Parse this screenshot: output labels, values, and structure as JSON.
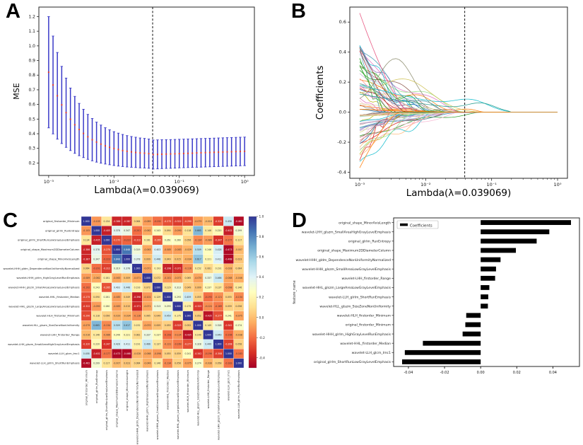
{
  "figure": {
    "panels": {
      "a_label": "A",
      "b_label": "B",
      "c_label": "C",
      "d_label": "D"
    }
  },
  "chart_data": [
    {
      "panel": "A",
      "type": "errorbar",
      "xlabel": "Lambda(λ=0.039069)",
      "ylabel": "MSE",
      "x_tick_labels": [
        "10⁻³",
        "10⁻²",
        "10⁻¹",
        "10⁰"
      ],
      "x_tick_values": [
        -3,
        -2,
        -1,
        0
      ],
      "y_ticks": [
        0.2,
        0.3,
        0.4,
        0.5,
        0.6,
        0.7,
        0.8,
        0.9,
        1.0,
        1.1,
        1.2
      ],
      "xlim": [
        -3.15,
        0.15
      ],
      "ylim": [
        0.115,
        1.265
      ],
      "vline_loglambda": -1.408,
      "colors": {
        "bar": "#3a3ac8",
        "point": "#e03c31",
        "vline": "#222222"
      },
      "loglambda": [
        -3.0,
        -2.933,
        -2.867,
        -2.8,
        -2.733,
        -2.667,
        -2.6,
        -2.533,
        -2.467,
        -2.4,
        -2.333,
        -2.267,
        -2.2,
        -2.133,
        -2.067,
        -2.0,
        -1.933,
        -1.867,
        -1.8,
        -1.733,
        -1.667,
        -1.6,
        -1.533,
        -1.467,
        -1.4,
        -1.333,
        -1.267,
        -1.2,
        -1.133,
        -1.067,
        -1.0,
        -0.933,
        -0.867,
        -0.8,
        -0.733,
        -0.667,
        -0.6,
        -0.533,
        -0.467,
        -0.4,
        -0.333,
        -0.267,
        -0.2,
        -0.133,
        -0.067,
        0.0
      ],
      "mse_mean": [
        0.82,
        0.733,
        0.659,
        0.597,
        0.544,
        0.499,
        0.461,
        0.429,
        0.402,
        0.379,
        0.359,
        0.343,
        0.329,
        0.317,
        0.307,
        0.299,
        0.292,
        0.285,
        0.28,
        0.276,
        0.272,
        0.269,
        0.267,
        0.264,
        0.258,
        0.259,
        0.26,
        0.261,
        0.262,
        0.263,
        0.264,
        0.265,
        0.266,
        0.267,
        0.269,
        0.27,
        0.271,
        0.272,
        0.273,
        0.274,
        0.275,
        0.276,
        0.277,
        0.278,
        0.279,
        0.28
      ],
      "mse_lower": [
        0.44,
        0.399,
        0.363,
        0.333,
        0.307,
        0.285,
        0.266,
        0.25,
        0.237,
        0.225,
        0.215,
        0.206,
        0.199,
        0.193,
        0.188,
        0.183,
        0.179,
        0.176,
        0.173,
        0.171,
        0.169,
        0.167,
        0.166,
        0.164,
        0.159,
        0.16,
        0.162,
        0.163,
        0.164,
        0.165,
        0.167,
        0.168,
        0.169,
        0.17,
        0.171,
        0.172,
        0.173,
        0.174,
        0.175,
        0.176,
        0.177,
        0.178,
        0.179,
        0.18,
        0.181,
        0.182
      ],
      "mse_upper": [
        1.2,
        1.067,
        0.955,
        0.86,
        0.78,
        0.712,
        0.655,
        0.607,
        0.567,
        0.532,
        0.504,
        0.479,
        0.459,
        0.441,
        0.427,
        0.414,
        0.404,
        0.395,
        0.387,
        0.381,
        0.376,
        0.371,
        0.368,
        0.364,
        0.357,
        0.358,
        0.359,
        0.359,
        0.36,
        0.361,
        0.362,
        0.363,
        0.364,
        0.365,
        0.366,
        0.367,
        0.368,
        0.369,
        0.37,
        0.371,
        0.372,
        0.373,
        0.374,
        0.375,
        0.376,
        0.377
      ]
    },
    {
      "panel": "B",
      "type": "line",
      "xlabel": "Lambda(λ=0.039069)",
      "ylabel": "Coefficients",
      "x_tick_labels": [
        "10⁻³",
        "10⁻²",
        "10⁻¹",
        "10⁰"
      ],
      "x_tick_values": [
        -3,
        -2,
        -1,
        0
      ],
      "y_ticks": [
        -0.4,
        -0.2,
        0.0,
        0.2,
        0.4,
        0.6
      ],
      "xlim": [
        -3.15,
        0.15
      ],
      "ylim": [
        -0.44,
        0.7
      ],
      "vline_loglambda": -1.408,
      "vline_color": "#222222",
      "n_random_lines": 80,
      "seed": 11,
      "coef_start_range": [
        -0.37,
        0.66
      ],
      "palette": [
        "#1f77b4",
        "#ff7f0e",
        "#2ca02c",
        "#d62728",
        "#9467bd",
        "#8c564b",
        "#e377c2",
        "#7f7f7f",
        "#bcbd22",
        "#17becf",
        "#4e9fb4",
        "#c49c94",
        "#f7b6d2",
        "#dbdb8d",
        "#9edae5",
        "#aec7e8",
        "#ffbb78",
        "#98df8a",
        "#ff9896",
        "#c5b0d5"
      ],
      "highlight_lines": [
        {
          "color": "#e75480",
          "y0": 0.66,
          "xz": -2.25,
          "type": "decay"
        },
        {
          "color": "#8c8c6e",
          "y0": 0.05,
          "type": "bump",
          "amp": 0.33,
          "xc": -2.45,
          "w": 0.38,
          "xz": -1.45
        },
        {
          "color": "#cfc255",
          "y0": 0.1,
          "type": "bump",
          "amp": 0.17,
          "xc": -2.3,
          "w": 0.52,
          "xz": -1.2
        },
        {
          "color": "#8b2e2e",
          "y0": 0.43,
          "xz": -2.3,
          "type": "decay"
        },
        {
          "color": "#b03a3a",
          "y0": 0.41,
          "xz": -2.45,
          "type": "decay"
        },
        {
          "color": "#ff7f0e",
          "y0": -0.37,
          "xz": -2.4,
          "type": "decay"
        },
        {
          "color": "#2ca02c",
          "y0": 0.31,
          "xz": -2.5,
          "type": "decay"
        },
        {
          "color": "#17becf",
          "y0": 0.18,
          "type": "bump",
          "amp": 0.06,
          "xc": -1.3,
          "w": 0.36,
          "xz": -0.75
        },
        {
          "color": "#2a9d8f",
          "y0": 0.12,
          "type": "bump",
          "amp": 0.05,
          "xc": -1.15,
          "w": 0.3,
          "xz": -0.72
        },
        {
          "color": "#ff7f0e",
          "y0": 0.02,
          "xz": -1.5,
          "type": "decay"
        }
      ]
    },
    {
      "panel": "C",
      "type": "heatmap",
      "colormap": "RdYlBu",
      "vmin": -0.5,
      "vmax": 1.0,
      "colorbar_ticks": [
        1.0,
        0.8,
        0.6,
        0.4,
        0.2,
        0.0,
        -0.2,
        -0.4
      ],
      "features": [
        "original_firstorder_Minimum",
        "original_glrlm_RunEntropy",
        "original_glrlm_ShortRunLowGrayLevelEmphasis",
        "original_shape_Maximum2DDiameterColumn",
        "original_shape_MinorAxisLength",
        "wavelet-HHH_gldm_DependenceNonUniformityNormalized",
        "wavelet-HHH_glrlm_HighGrayLevelRunEmphasis",
        "wavelet-HHH_glszm_SmallAreaLowGrayLevelEmphasis",
        "wavelet-HHL_firstorder_Median",
        "wavelet-HHL_glszm_LargeAreaLowGrayLevelEmphasis",
        "wavelet-HLH_firstorder_Minimum",
        "wavelet-HLL_glszm_SizeZoneNonUniformity",
        "wavelet-LHH_firstorder_Range",
        "wavelet-LHH_glszm_SmallAreaHighGrayLevelEmphasis",
        "wavelet-LLH_glcm_Imc1",
        "wavelet-LLH_glrlm_ShortRunEmphasis"
      ],
      "matrix": [
        [
          1.0,
          -0.105,
          0.134,
          -0.386,
          -0.387,
          0.064,
          -0.089,
          -0.192,
          -0.275,
          -0.322,
          -0.29,
          -0.079,
          -0.016,
          -0.32,
          0.458,
          -0.462
        ],
        [
          -0.105,
          1.0,
          -0.405,
          0.378,
          0.347,
          -0.201,
          -0.062,
          0.243,
          0.09,
          -0.09,
          0.118,
          0.665,
          0.146,
          0.22,
          -0.402,
          0.299
        ],
        [
          0.134,
          -0.405,
          1.0,
          -0.27,
          -0.223,
          -0.312,
          0.161,
          -0.265,
          0.261,
          0.26,
          0.056,
          -0.134,
          -0.086,
          -0.347,
          -0.177,
          0.117
        ],
        [
          -0.386,
          0.378,
          -0.27,
          1.0,
          0.848,
          0.319,
          -0.063,
          0.403,
          -0.085,
          -0.083,
          -0.029,
          0.509,
          0.246,
          0.428,
          -0.473,
          -0.007
        ],
        [
          -0.387,
          0.347,
          -0.223,
          0.848,
          1.0,
          0.378,
          0.009,
          0.448,
          0.049,
          0.015,
          -0.034,
          0.617,
          0.221,
          0.411,
          -0.468,
          0.023
        ],
        [
          0.064,
          -0.201,
          -0.312,
          0.319,
          0.378,
          1.0,
          -0.071,
          0.193,
          -0.398,
          -0.371,
          -0.116,
          0.152,
          0.081,
          0.191,
          -0.028,
          0.064
        ],
        [
          -0.089,
          -0.062,
          0.161,
          -0.063,
          0.009,
          -0.071,
          1.0,
          0.072,
          -0.101,
          -0.071,
          0.065,
          -0.07,
          0.337,
          0.466,
          -0.068,
          -0.046
        ],
        [
          -0.192,
          0.243,
          -0.265,
          0.403,
          0.448,
          0.193,
          0.072,
          1.0,
          0.129,
          0.313,
          0.049,
          0.009,
          0.237,
          0.137,
          -0.098,
          0.146
        ],
        [
          -0.275,
          0.09,
          0.261,
          -0.085,
          0.049,
          -0.398,
          -0.101,
          0.129,
          1.0,
          0.293,
          0.459,
          0.055,
          -0.193,
          -0.121,
          0.055,
          -0.134
        ],
        [
          -0.322,
          -0.09,
          0.26,
          -0.083,
          0.015,
          -0.371,
          -0.071,
          0.313,
          0.293,
          1.0,
          0.175,
          -0.325,
          -0.124,
          -0.169,
          0.059,
          0.056
        ],
        [
          -0.29,
          0.118,
          0.056,
          -0.029,
          -0.034,
          -0.116,
          0.065,
          0.049,
          0.459,
          0.175,
          1.0,
          0.052,
          -0.435,
          -0.277,
          0.241,
          -0.075
        ],
        [
          -0.079,
          0.665,
          -0.134,
          0.509,
          0.617,
          0.152,
          -0.07,
          0.009,
          0.055,
          -0.325,
          0.052,
          1.0,
          0.149,
          0.328,
          -0.342,
          0.274
        ],
        [
          -0.016,
          0.146,
          -0.086,
          0.246,
          0.221,
          0.081,
          0.337,
          0.237,
          -0.193,
          -0.124,
          -0.435,
          0.149,
          1.0,
          0.449,
          -0.196,
          -0.038
        ],
        [
          -0.32,
          0.22,
          -0.347,
          0.428,
          0.411,
          0.191,
          0.466,
          0.137,
          -0.121,
          -0.169,
          -0.277,
          0.328,
          0.449,
          1.0,
          -0.308,
          0.058
        ],
        [
          0.458,
          -0.402,
          -0.177,
          -0.473,
          -0.468,
          -0.028,
          -0.068,
          -0.098,
          0.055,
          0.059,
          0.241,
          -0.342,
          -0.196,
          -0.308,
          1.0,
          -0.183
        ],
        [
          -0.462,
          0.299,
          0.117,
          -0.007,
          0.023,
          0.064,
          -0.046,
          0.146,
          -0.134,
          0.056,
          -0.075,
          0.274,
          -0.038,
          0.058,
          -0.183,
          1.0
        ]
      ]
    },
    {
      "panel": "D",
      "type": "bar",
      "orientation": "horizontal",
      "legend_label": "Coefficients",
      "ylabel": "feature_name",
      "bar_color": "#000000",
      "x_ticks": [
        -0.04,
        -0.02,
        0.0,
        0.02,
        0.04
      ],
      "xlim": [
        -0.0482,
        0.0547
      ],
      "categories": [
        "original_shape_MinorAxisLength",
        "wavelet-LHH_glszm_SmallAreaHighGrayLevelEmphasis",
        "original_glrlm_RunEntropy",
        "original_shape_Maximum2DDiameterColumn",
        "wavelet-HHH_gldm_DependenceNonUniformityNormalized",
        "wavelet-HHH_glszm_SmallAreaLowGrayLevelEmphasis",
        "wavelet-LHH_firstorder_Range",
        "wavelet-HHL_glszm_LargeAreaLowGrayLevelEmphasis",
        "wavelet-LLH_glrlm_ShortRunEmphasis",
        "wavelet-HLL_glszm_SizeZoneNonUniformity",
        "wavelet-HLH_firstorder_Minimum",
        "original_firstorder_Minimum",
        "wavelet-HHH_glrlm_HighGrayLevelRunEmphasis",
        "wavelet-HHL_firstorder_Median",
        "wavelet-LLH_glcm_Imc1",
        "original_glrlm_ShortRunLowGrayLevelEmphasis"
      ],
      "values": [
        0.05,
        0.038,
        0.031,
        0.0195,
        0.011,
        0.0085,
        0.008,
        0.0048,
        0.0042,
        0.004,
        -0.008,
        -0.0085,
        -0.01,
        -0.032,
        -0.042,
        -0.0435
      ]
    }
  ]
}
